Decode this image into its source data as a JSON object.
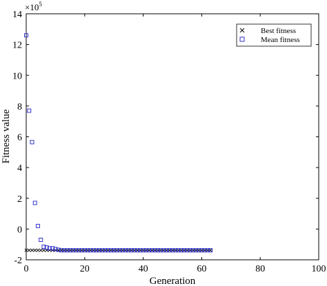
{
  "chart_data": {
    "type": "scatter",
    "xlabel": "Generation",
    "ylabel": "Fitness value",
    "xlim": [
      0,
      100
    ],
    "ylim": [
      -2,
      14
    ],
    "xticks": [
      0,
      20,
      40,
      60,
      80,
      100
    ],
    "yticks": [
      -2,
      0,
      2,
      4,
      6,
      8,
      10,
      12,
      14
    ],
    "y_multiplier": {
      "base": "×10",
      "exponent": "5"
    },
    "grid": false,
    "legend_position": "top-right",
    "series": [
      {
        "name": "Best fitness",
        "marker": "x",
        "color": "#000000",
        "x": [
          0,
          1,
          2,
          3,
          4,
          5,
          6,
          7,
          8,
          9,
          10,
          11,
          12,
          13,
          14,
          15,
          16,
          17,
          18,
          19,
          20,
          21,
          22,
          23,
          24,
          25,
          26,
          27,
          28,
          29,
          30,
          31,
          32,
          33,
          34,
          35,
          36,
          37,
          38,
          39,
          40,
          41,
          42,
          43,
          44,
          45,
          46,
          47,
          48,
          49,
          50,
          51,
          52,
          53,
          54,
          55,
          56,
          57,
          58,
          59,
          60,
          61,
          62,
          63
        ],
        "y": [
          -1.38,
          -1.38,
          -1.38,
          -1.38,
          -1.38,
          -1.38,
          -1.38,
          -1.38,
          -1.38,
          -1.38,
          -1.38,
          -1.38,
          -1.38,
          -1.38,
          -1.38,
          -1.38,
          -1.38,
          -1.38,
          -1.38,
          -1.38,
          -1.38,
          -1.38,
          -1.38,
          -1.38,
          -1.38,
          -1.38,
          -1.38,
          -1.38,
          -1.38,
          -1.38,
          -1.38,
          -1.38,
          -1.38,
          -1.38,
          -1.38,
          -1.38,
          -1.38,
          -1.38,
          -1.38,
          -1.38,
          -1.38,
          -1.38,
          -1.38,
          -1.38,
          -1.38,
          -1.38,
          -1.38,
          -1.38,
          -1.38,
          -1.38,
          -1.38,
          -1.38,
          -1.38,
          -1.38,
          -1.38,
          -1.38,
          -1.38,
          -1.38,
          -1.38,
          -1.38,
          -1.38,
          -1.38,
          -1.38,
          -1.38
        ]
      },
      {
        "name": "Mean fitness",
        "marker": "square",
        "color": "#3333cc",
        "x": [
          0,
          1,
          2,
          3,
          4,
          5,
          6,
          7,
          8,
          9,
          10,
          11,
          12,
          13,
          14,
          15,
          16,
          17,
          18,
          19,
          20,
          21,
          22,
          23,
          24,
          25,
          26,
          27,
          28,
          29,
          30,
          31,
          32,
          33,
          34,
          35,
          36,
          37,
          38,
          39,
          40,
          41,
          42,
          43,
          44,
          45,
          46,
          47,
          48,
          49,
          50,
          51,
          52,
          53,
          54,
          55,
          56,
          57,
          58,
          59,
          60,
          61,
          62,
          63
        ],
        "y": [
          12.6,
          7.7,
          5.65,
          1.7,
          0.2,
          -0.7,
          -1.15,
          -1.2,
          -1.25,
          -1.25,
          -1.3,
          -1.35,
          -1.38,
          -1.38,
          -1.38,
          -1.38,
          -1.38,
          -1.38,
          -1.38,
          -1.38,
          -1.38,
          -1.38,
          -1.38,
          -1.38,
          -1.38,
          -1.38,
          -1.38,
          -1.38,
          -1.38,
          -1.38,
          -1.38,
          -1.38,
          -1.38,
          -1.38,
          -1.38,
          -1.38,
          -1.38,
          -1.38,
          -1.38,
          -1.38,
          -1.38,
          -1.38,
          -1.38,
          -1.38,
          -1.38,
          -1.38,
          -1.38,
          -1.38,
          -1.38,
          -1.38,
          -1.38,
          -1.38,
          -1.38,
          -1.38,
          -1.38,
          -1.38,
          -1.38,
          -1.38,
          -1.38,
          -1.38,
          -1.38,
          -1.38,
          -1.38,
          -1.38
        ]
      }
    ]
  }
}
